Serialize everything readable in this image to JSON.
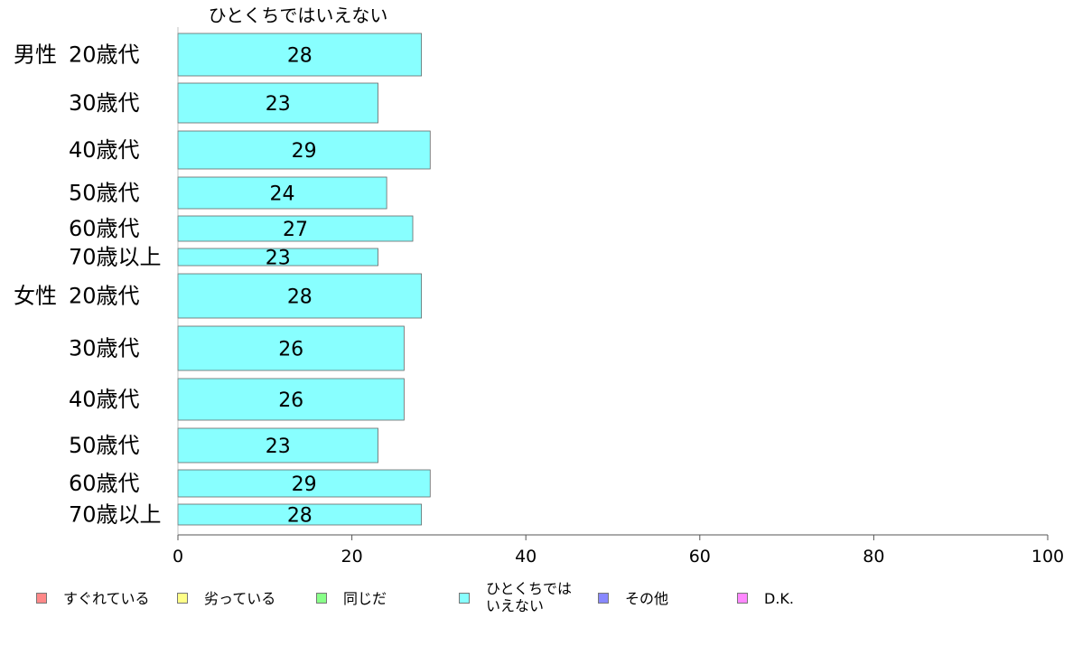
{
  "chart_data": {
    "type": "bar",
    "orientation": "horizontal",
    "stacked": true,
    "title": "ひとくちではいえない",
    "groups": [
      {
        "label": "男性",
        "categories": [
          "20歳代",
          "30歳代",
          "40歳代",
          "50歳代",
          "60歳代",
          "70歳以上"
        ]
      },
      {
        "label": "女性",
        "categories": [
          "20歳代",
          "30歳代",
          "40歳代",
          "50歳代",
          "60歳代",
          "70歳以上"
        ]
      }
    ],
    "series": [
      {
        "name": "ひとくちでは\nいえない",
        "color": "#88ffff",
        "values": [
          28,
          23,
          29,
          24,
          27,
          23,
          28,
          26,
          26,
          23,
          29,
          28
        ]
      }
    ],
    "xlim": [
      0,
      100
    ],
    "xticks": [
      "0",
      "20",
      "40",
      "60",
      "80",
      "100"
    ],
    "legend_position": "bottom",
    "grid": false
  },
  "legend": [
    {
      "label": "すぐれている",
      "color": "#ff8888"
    },
    {
      "label": "劣っている",
      "color": "#ffff88"
    },
    {
      "label": "同じだ",
      "color": "#88ff88"
    },
    {
      "label": "ひとくちでは\nいえない",
      "color": "#88ffff"
    },
    {
      "label": "その他",
      "color": "#8888ff"
    },
    {
      "label": "D.K.",
      "color": "#ff88ff"
    }
  ]
}
